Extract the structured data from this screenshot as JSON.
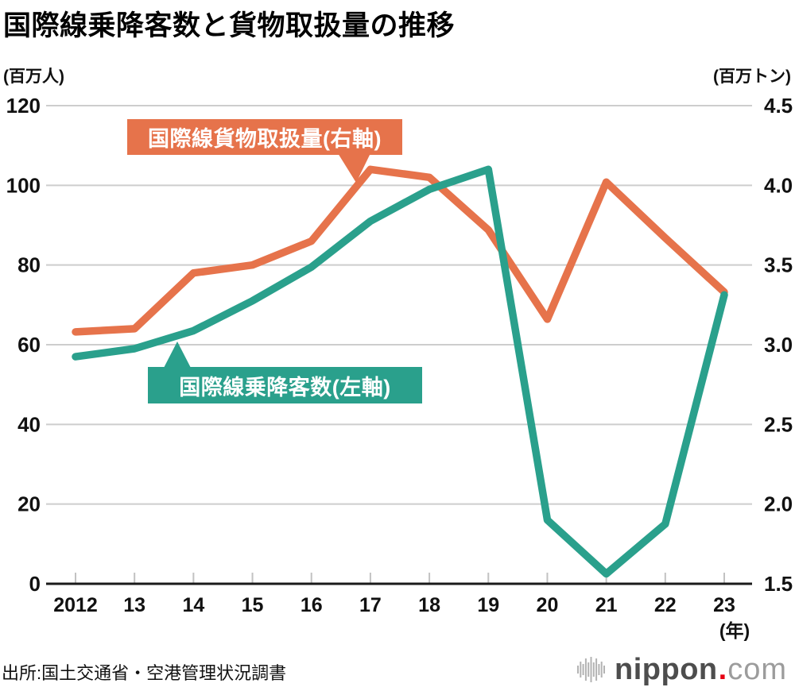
{
  "title": "国際線乗降客数と貨物取扱量の推移",
  "source": "出所:国土交通省・空港管理状況調書",
  "logo": {
    "name": "nippon",
    "dot": ".",
    "tld": "com",
    "accent_color": "#e60012",
    "bars_color": "#b3b3b3"
  },
  "chart_data": {
    "type": "line",
    "title": "国際線乗降客数と貨物取扱量の推移",
    "categories": [
      "2012",
      "13",
      "14",
      "15",
      "16",
      "17",
      "18",
      "19",
      "20",
      "21",
      "22",
      "23"
    ],
    "x_unit": "(年)",
    "grid": true,
    "legend_position": "annotated-callouts",
    "left_axis": {
      "unit": "(百万人)",
      "min": 0,
      "max": 120,
      "tick_values": [
        120,
        100,
        80,
        60,
        40,
        20,
        0
      ],
      "tick_labels": [
        "120",
        "100",
        "80",
        "60",
        "40",
        "20",
        "0"
      ]
    },
    "right_axis": {
      "unit": "(百万トン)",
      "min": 1.5,
      "max": 4.5,
      "tick_values": [
        4.5,
        4.0,
        3.5,
        3.0,
        2.5,
        2.0,
        1.5
      ],
      "tick_labels": [
        "4.5",
        "4.0",
        "3.5",
        "3.0",
        "2.5",
        "2.0",
        "1.5"
      ]
    },
    "series": [
      {
        "name": "国際線乗降客数(左軸)",
        "axis": "left",
        "color": "#2AA08C",
        "values": [
          57,
          59,
          63.5,
          71,
          79.5,
          91,
          99,
          104,
          16,
          2.5,
          15,
          72.5
        ]
      },
      {
        "name": "国際線貨物取扱量(右軸)",
        "axis": "right",
        "color": "#E6734B",
        "values": [
          3.08,
          3.1,
          3.45,
          3.5,
          3.65,
          4.1,
          4.05,
          3.72,
          3.16,
          4.02,
          3.67,
          3.33
        ]
      }
    ],
    "style": {
      "grid_color": "#cdcdcd",
      "axis_color": "#1a1a1a",
      "tick_color": "#c2c2c2",
      "line_width": 9.5
    }
  }
}
